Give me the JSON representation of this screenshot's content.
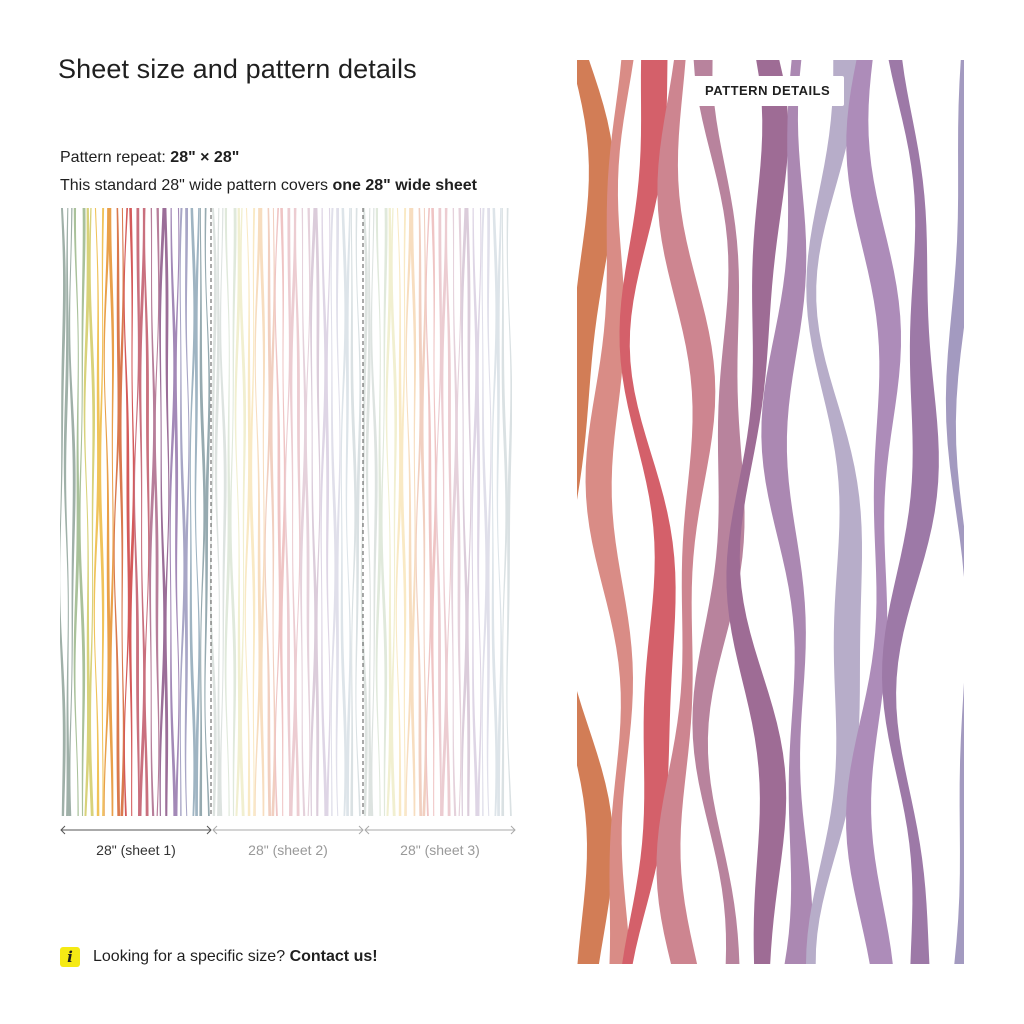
{
  "title": "Sheet size and pattern details",
  "repeat": {
    "label": "Pattern repeat: ",
    "value": "28\" × 28\""
  },
  "coverage": {
    "label": "This standard 28\" wide pattern covers ",
    "value": "one 28\" wide sheet"
  },
  "sheets": [
    {
      "label": "28\" (sheet 1)",
      "active": true
    },
    {
      "label": "28\" (sheet 2)",
      "active": false
    },
    {
      "label": "28\" (sheet 3)",
      "active": false
    }
  ],
  "info": {
    "icon": "info-icon",
    "text": "Looking for a specific size? ",
    "link": "Contact us!",
    "icon_color": "#f5ea14"
  },
  "badge": "PATTERN DETAILS",
  "palette": [
    "#9fb0a8",
    "#a9c19a",
    "#d8d27a",
    "#f0c35a",
    "#e9a04a",
    "#d9794e",
    "#d45a5a",
    "#c9707e",
    "#b77e9a",
    "#9b6e98",
    "#a389b7",
    "#a8a6c6",
    "#9fb4c2",
    "#96aab0"
  ],
  "big_palette": [
    "#d27d56",
    "#d98c86",
    "#d4606a",
    "#cd8590",
    "#b8839d",
    "#9e6c95",
    "#ab88b2",
    "#b7adc9",
    "#ad8cb9",
    "#9d79a7"
  ]
}
